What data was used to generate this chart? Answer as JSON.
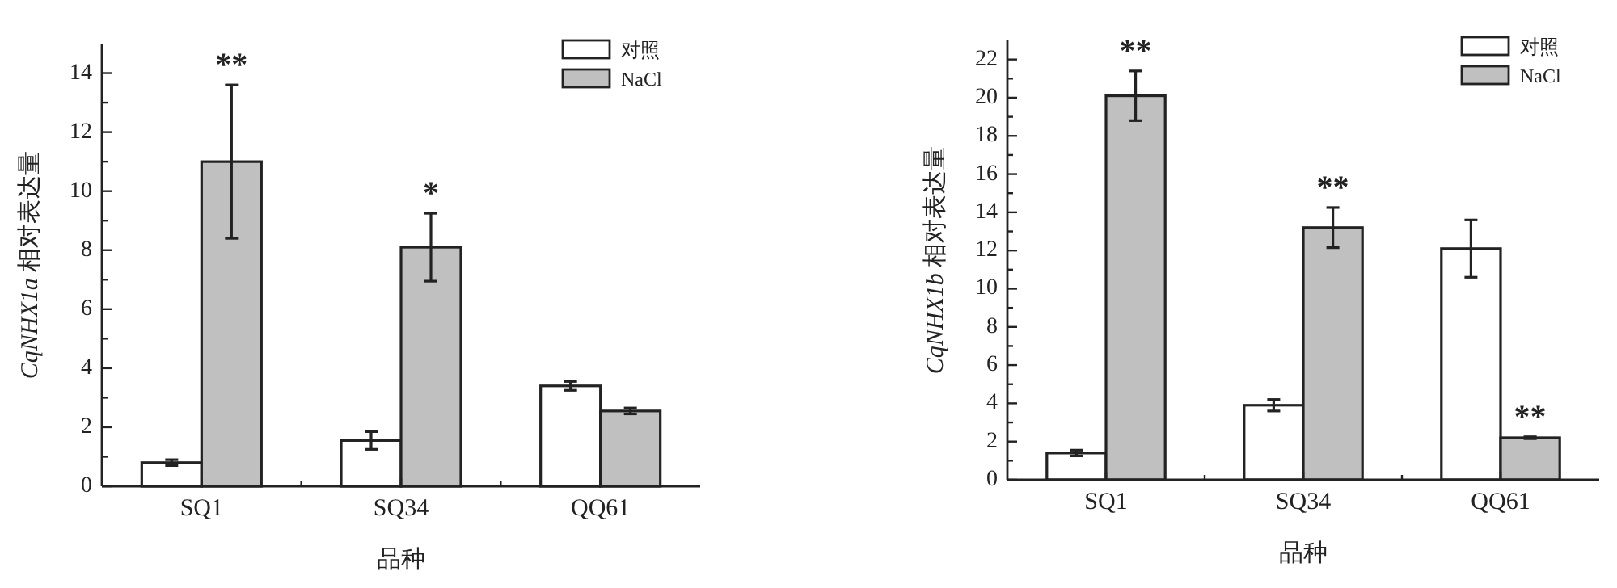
{
  "chart_data": [
    {
      "type": "bar",
      "xlabel": "品种",
      "ylabel": "CqNHX1a 相对表达量",
      "categories": [
        "SQ1",
        "SQ34",
        "QQ61"
      ],
      "series": [
        {
          "name": "对照",
          "color": "#ffffff",
          "values": [
            0.8,
            1.55,
            3.4
          ],
          "errors": [
            0.1,
            0.3,
            0.15
          ]
        },
        {
          "name": "NaCl",
          "color": "#c0c0c0",
          "values": [
            11.0,
            8.1,
            2.55
          ],
          "errors": [
            2.6,
            1.15,
            0.1
          ]
        }
      ],
      "ylim": [
        0,
        15
      ],
      "yticks": [
        0,
        {
          "value": 1,
          "label": null
        },
        2,
        {
          "value": 3,
          "label": null
        },
        4,
        {
          "value": 5,
          "label": null
        },
        6,
        {
          "value": 7,
          "label": null
        },
        8,
        {
          "value": 9,
          "label": null
        },
        10,
        {
          "value": 11,
          "label": null
        },
        12,
        {
          "value": 13,
          "label": null
        },
        14
      ],
      "annotations": [
        {
          "text": "**",
          "x": "SQ1",
          "y": 11.0
        },
        {
          "text": "*",
          "x": "SQ34",
          "y": 8.1
        }
      ],
      "legend": "top right",
      "grid": false
    },
    {
      "type": "bar",
      "xlabel": "品种",
      "ylabel": "CqNHX1b 相对表达量",
      "categories": [
        "SQ1",
        "SQ34",
        "QQ61"
      ],
      "series": [
        {
          "name": "对照",
          "color": "#ffffff",
          "values": [
            1.4,
            3.9,
            12.1
          ],
          "errors": [
            0.15,
            0.3,
            1.5
          ]
        },
        {
          "name": "NaCl",
          "color": "#c0c0c0",
          "values": [
            20.1,
            13.2,
            2.2
          ],
          "errors": [
            1.3,
            1.05,
            0.05
          ]
        }
      ],
      "ylim": [
        0,
        23
      ],
      "yticks": [
        0,
        {
          "value": 1,
          "label": null
        },
        2,
        {
          "value": 3,
          "label": null
        },
        4,
        {
          "value": 5,
          "label": null
        },
        6,
        {
          "value": 7,
          "label": null
        },
        8,
        {
          "value": 9,
          "label": null
        },
        10,
        {
          "value": 11,
          "label": null
        },
        12,
        {
          "value": 13,
          "label": null
        },
        14,
        {
          "value": 15,
          "label": null
        },
        16,
        {
          "value": 17,
          "label": null
        },
        18,
        {
          "value": 19,
          "label": null
        },
        20,
        {
          "value": 21,
          "label": null
        },
        22
      ],
      "annotations": [
        {
          "text": "**",
          "x": "SQ1",
          "y": 20.1
        },
        {
          "text": "**",
          "x": "SQ34",
          "y": 13.2
        },
        {
          "text": "**",
          "x": "QQ61",
          "y": 2.2
        }
      ],
      "legend": "top right",
      "grid": false
    }
  ]
}
